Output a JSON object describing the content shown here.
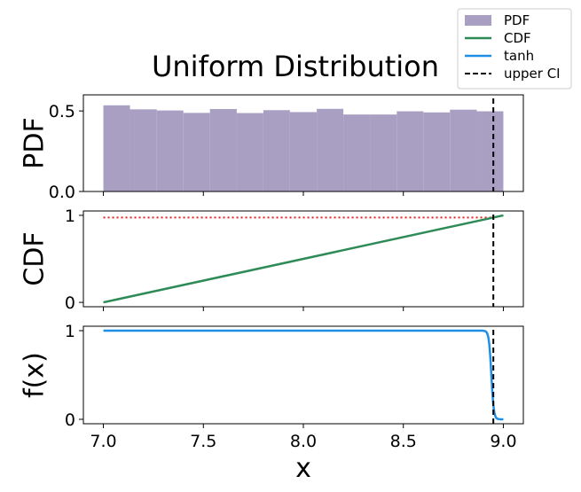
{
  "chart_data": {
    "type": "line",
    "title": "Uniform Distribution",
    "xlabel": "x",
    "xlim": [
      6.9,
      9.1
    ],
    "x_ticks": [
      "7.0",
      "7.5",
      "8.0",
      "8.5",
      "9.0"
    ],
    "x_tick_values": [
      7.0,
      7.5,
      8.0,
      8.5,
      9.0
    ],
    "upper_ci": 8.95,
    "legend": {
      "placement": "top-right",
      "entries": [
        {
          "label": "PDF",
          "style": "patch",
          "color": "#a99fc3"
        },
        {
          "label": "CDF",
          "style": "line",
          "color": "#2e8b57"
        },
        {
          "label": "tanh",
          "style": "line",
          "color": "#1e8fe6"
        },
        {
          "label": "upper CI",
          "style": "dashed",
          "color": "#000000"
        }
      ]
    },
    "panels": [
      {
        "name": "pdf",
        "ylabel": "PDF",
        "ylim": [
          0,
          0.6
        ],
        "y_ticks": [
          "0.0",
          "0.5"
        ],
        "y_tick_values": [
          0.0,
          0.5
        ],
        "bins": [
          7.0,
          7.133,
          7.267,
          7.4,
          7.533,
          7.667,
          7.8,
          7.933,
          8.067,
          8.2,
          8.333,
          8.467,
          8.6,
          8.733,
          8.867,
          9.0
        ],
        "heights": [
          0.535,
          0.51,
          0.503,
          0.488,
          0.512,
          0.487,
          0.505,
          0.493,
          0.513,
          0.478,
          0.478,
          0.498,
          0.491,
          0.508,
          0.498
        ],
        "bar_color": "#a99fc3"
      },
      {
        "name": "cdf",
        "ylabel": "CDF",
        "ylim": [
          -0.05,
          1.05
        ],
        "y_ticks": [
          "0",
          "1"
        ],
        "y_tick_values": [
          0,
          1
        ],
        "series": [
          {
            "name": "CDF",
            "x": [
              7.0,
              9.0
            ],
            "y": [
              0,
              1
            ],
            "color": "#2e8b57"
          }
        ],
        "hline": {
          "y": 0.975,
          "x_range": [
            7.0,
            8.95
          ],
          "color": "#e8201e"
        }
      },
      {
        "name": "tanh",
        "ylabel": "f(x)",
        "ylim": [
          -0.05,
          1.05
        ],
        "y_ticks": [
          "0",
          "1"
        ],
        "y_tick_values": [
          0,
          1
        ],
        "series": [
          {
            "name": "tanh",
            "x_start": 7.0,
            "x_end": 9.0,
            "center": 8.94,
            "scale": 0.012,
            "color": "#1e8fe6"
          }
        ]
      }
    ]
  }
}
